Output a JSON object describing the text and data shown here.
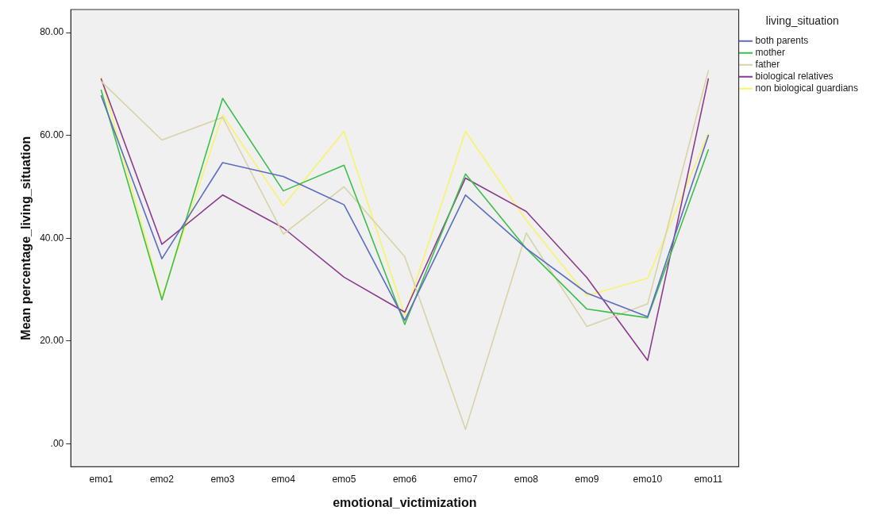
{
  "chart_data": {
    "type": "line",
    "xlabel": "emotional_victimization",
    "ylabel": "Mean percentage_living_situation",
    "legend_title": "living_situation",
    "categories": [
      "emo1",
      "emo2",
      "emo3",
      "emo4",
      "emo5",
      "emo6",
      "emo7",
      "emo8",
      "emo9",
      "emo10",
      "emo11"
    ],
    "series": [
      {
        "name": "both parents",
        "color": "#5b6dbf",
        "values": [
          67.7,
          36.0,
          54.7,
          52.0,
          46.5,
          24.0,
          48.4,
          38.0,
          29.3,
          24.7,
          60.0
        ]
      },
      {
        "name": "mother",
        "color": "#3cbf4a",
        "values": [
          68.8,
          28.0,
          67.2,
          49.2,
          54.2,
          23.2,
          52.5,
          38.0,
          26.2,
          24.5,
          57.2
        ]
      },
      {
        "name": "father",
        "color": "#d8d3a6",
        "values": [
          70.5,
          59.1,
          63.5,
          40.8,
          50.0,
          36.4,
          2.8,
          41.0,
          22.8,
          27.2,
          72.6
        ]
      },
      {
        "name": "biological relatives",
        "color": "#8b3a8f",
        "values": [
          71.0,
          38.8,
          48.4,
          42.0,
          32.4,
          25.6,
          51.7,
          45.2,
          32.3,
          16.2,
          71.0
        ]
      },
      {
        "name": "non biological guardians",
        "color": "#f7f36a",
        "values": [
          71.3,
          28.5,
          64.0,
          46.3,
          60.8,
          25.0,
          60.8,
          43.5,
          28.8,
          32.2,
          60.4
        ]
      }
    ],
    "ylim": [
      -4.5,
      84.5
    ],
    "yticks": [
      {
        "value": 0,
        "label": ".00"
      },
      {
        "value": 20,
        "label": "20.00"
      },
      {
        "value": 40,
        "label": "40.00"
      },
      {
        "value": 60,
        "label": "60.00"
      },
      {
        "value": 80,
        "label": "80.00"
      }
    ],
    "grid": false,
    "legend": "top right",
    "marker": "none",
    "line_style": "solid"
  }
}
